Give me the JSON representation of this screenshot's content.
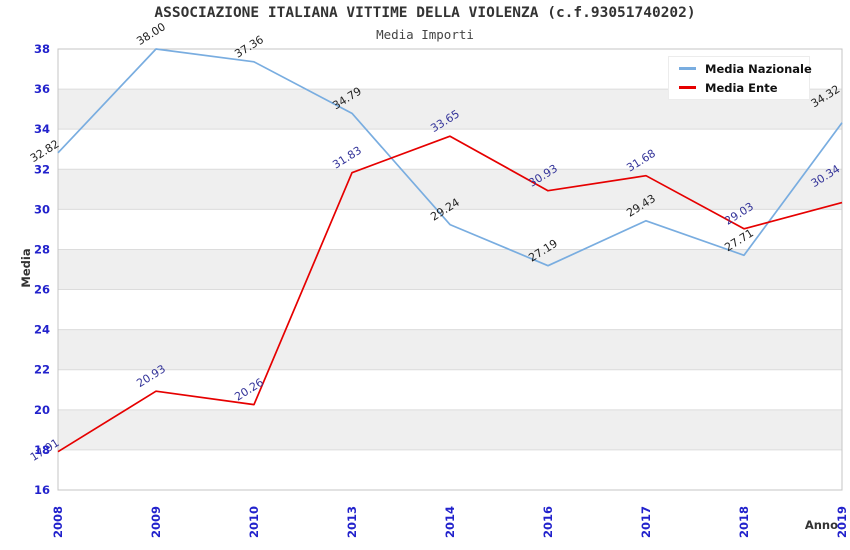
{
  "header": {
    "title": "ASSOCIAZIONE ITALIANA VITTIME DELLA VIOLENZA (c.f.93051740202)",
    "subtitle": "Media Importi"
  },
  "chart_data": {
    "type": "line",
    "title": "ASSOCIAZIONE ITALIANA VITTIME DELLA VIOLENZA (c.f.93051740202)",
    "subtitle": "Media Importi",
    "xlabel": "Anno",
    "ylabel": "Media",
    "categories": [
      "2008",
      "2009",
      "2010",
      "2013",
      "2014",
      "2016",
      "2017",
      "2018",
      "2019"
    ],
    "series": [
      {
        "name": "Media Nazionale",
        "color": "#79ade0",
        "label_color": "#222222",
        "values": [
          32.82,
          38.0,
          37.36,
          34.79,
          29.24,
          27.19,
          29.43,
          27.71,
          34.32
        ]
      },
      {
        "name": "Media Ente",
        "color": "#e60000",
        "label_color": "#333399",
        "values": [
          17.91,
          20.93,
          20.26,
          31.83,
          33.65,
          30.93,
          31.68,
          29.03,
          30.34
        ]
      }
    ],
    "ylim": [
      16,
      38
    ],
    "ytick_step": 2,
    "grid": true,
    "banded_background": true,
    "legend_position": "top-right",
    "value_labels_decimals": 2,
    "colors": {
      "tick_label": "#2222cc",
      "axis_title": "#333333",
      "band_gray": "#efefef",
      "band_white": "#ffffff",
      "gridline": "#dcdcdc",
      "frame": "#c4c4c4"
    }
  }
}
